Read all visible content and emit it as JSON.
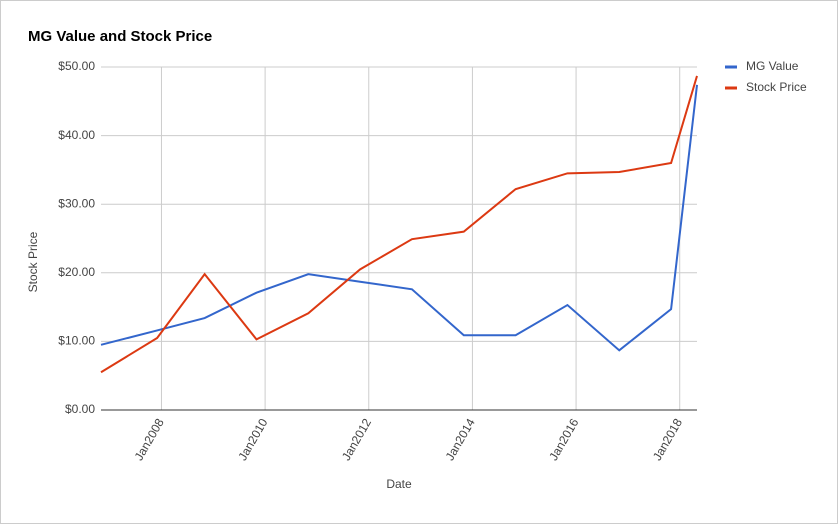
{
  "chart_data": {
    "type": "line",
    "title": "MG Value and Stock Price",
    "x_label": "Date",
    "y_label": "Stock Price",
    "x": [
      "2006-11",
      "2007-12",
      "2008-11",
      "2009-11",
      "2010-11",
      "2011-11",
      "2012-11",
      "2013-11",
      "2014-11",
      "2015-11",
      "2016-11",
      "2017-11",
      "2018-05"
    ],
    "series": [
      {
        "name": "MG Value",
        "color": "#3366cc",
        "values": [
          9.5,
          11.6,
          13.4,
          17.1,
          19.8,
          18.7,
          17.6,
          10.9,
          10.9,
          15.3,
          8.7,
          14.7,
          47.4
        ]
      },
      {
        "name": "Stock Price",
        "color": "#dc3912",
        "values": [
          5.5,
          10.5,
          19.8,
          10.3,
          14.1,
          20.5,
          24.9,
          26.0,
          32.2,
          34.5,
          34.7,
          36.0,
          48.7
        ]
      }
    ],
    "xlim": [
      "2006-11",
      "2018-05"
    ],
    "xticks": [
      {
        "value": "2008-01",
        "label": "Jan2008"
      },
      {
        "value": "2010-01",
        "label": "Jan2010"
      },
      {
        "value": "2012-01",
        "label": "Jan2012"
      },
      {
        "value": "2014-01",
        "label": "Jan2014"
      },
      {
        "value": "2016-01",
        "label": "Jan2016"
      },
      {
        "value": "2018-01",
        "label": "Jan2018"
      }
    ],
    "ylim": [
      0,
      50
    ],
    "yticks": [
      {
        "value": 0,
        "label": "$0.00"
      },
      {
        "value": 10,
        "label": "$10.00"
      },
      {
        "value": 20,
        "label": "$20.00"
      },
      {
        "value": 30,
        "label": "$30.00"
      },
      {
        "value": 40,
        "label": "$40.00"
      },
      {
        "value": 50,
        "label": "$50.00"
      }
    ],
    "grid": true,
    "legend": "right"
  }
}
